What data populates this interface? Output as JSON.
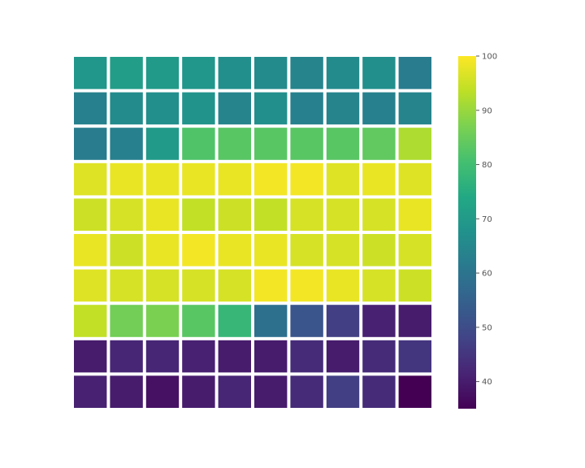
{
  "chart_data": {
    "type": "heatmap",
    "title": "",
    "xlabel": "",
    "ylabel": "",
    "grid": false,
    "colormap": "viridis",
    "value_range": [
      35,
      100
    ],
    "colorbar": {
      "placement": "right",
      "ticks": [
        40,
        50,
        60,
        70,
        80,
        90,
        100
      ],
      "tick_labels": [
        "40",
        "50",
        "60",
        "70",
        "80",
        "90",
        "100"
      ]
    },
    "rows": 10,
    "cols": 10,
    "values": [
      [
        69,
        71,
        70,
        69,
        67,
        66,
        64,
        66,
        67,
        62
      ],
      [
        63,
        66,
        67,
        68,
        64,
        67,
        63,
        64,
        63,
        64
      ],
      [
        62,
        63,
        70,
        82,
        83,
        83,
        83,
        83,
        84,
        92
      ],
      [
        97,
        98,
        98,
        98,
        98,
        99,
        99,
        97,
        98,
        97
      ],
      [
        95,
        96,
        98,
        94,
        95,
        94,
        96,
        96,
        96,
        98
      ],
      [
        98,
        95,
        98,
        99,
        98,
        98,
        96,
        96,
        95,
        96
      ],
      [
        97,
        96,
        96,
        96,
        96,
        99,
        99,
        98,
        96,
        95
      ],
      [
        94,
        86,
        87,
        83,
        78,
        59,
        52,
        47,
        41,
        40
      ],
      [
        40,
        42,
        42,
        41,
        40,
        40,
        43,
        40,
        43,
        45
      ],
      [
        41,
        40,
        38,
        40,
        42,
        40,
        43,
        47,
        43,
        35
      ]
    ]
  }
}
